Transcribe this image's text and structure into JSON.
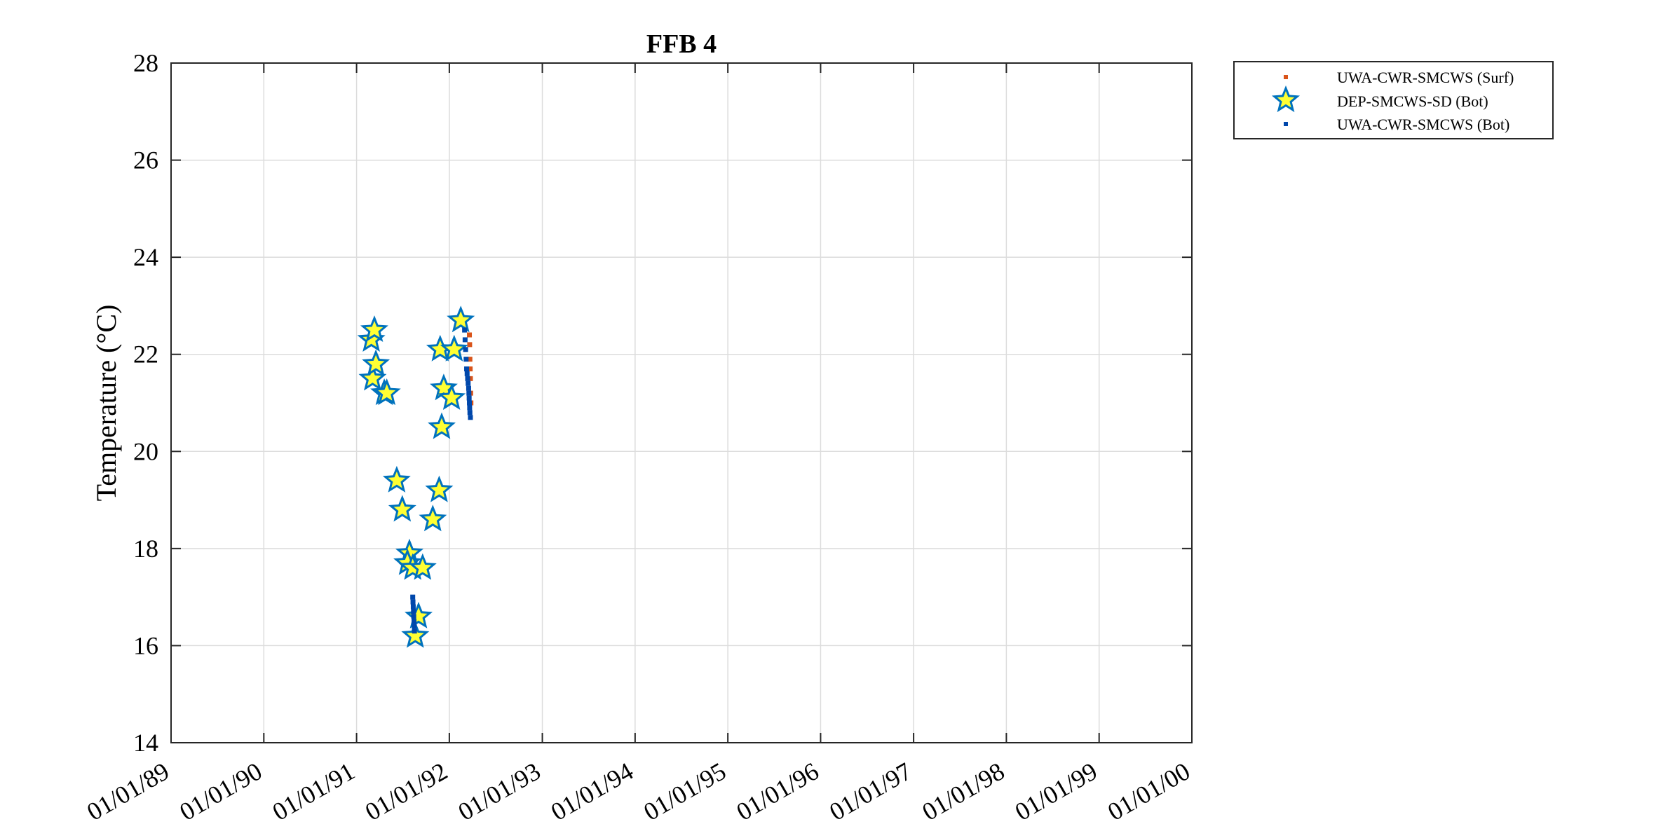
{
  "chart_data": {
    "type": "scatter",
    "title": "FFB 4",
    "xlabel": "",
    "ylabel": "Temperature (°C)",
    "x_axis_kind": "date",
    "xlim": [
      "1989-01-01",
      "2000-01-01"
    ],
    "ylim": [
      14,
      28
    ],
    "x_ticks": [
      "1989-01-01",
      "1990-01-01",
      "1991-01-01",
      "1992-01-01",
      "1993-01-01",
      "1994-01-01",
      "1995-01-01",
      "1996-01-01",
      "1997-01-01",
      "1998-01-01",
      "1999-01-01",
      "2000-01-01"
    ],
    "x_tick_labels": [
      "01/01/89",
      "01/01/90",
      "01/01/91",
      "01/01/92",
      "01/01/93",
      "01/01/94",
      "01/01/95",
      "01/01/96",
      "01/01/97",
      "01/01/98",
      "01/01/99",
      "01/01/00"
    ],
    "y_ticks": [
      14,
      16,
      18,
      20,
      22,
      24,
      26,
      28
    ],
    "y_tick_labels": [
      "14",
      "16",
      "18",
      "20",
      "22",
      "24",
      "26",
      "28"
    ],
    "grid": true,
    "legend_position": "outside-top-right",
    "series": [
      {
        "name": "UWA-CWR-SMCWS (Surf)",
        "marker": "square",
        "color": "#d9541a",
        "points": [
          [
            "1992-03-20",
            22.4
          ],
          [
            "1992-03-21",
            22.2
          ],
          [
            "1992-03-22",
            21.9
          ],
          [
            "1992-03-23",
            21.7
          ],
          [
            "1992-03-24",
            21.5
          ],
          [
            "1992-03-25",
            21.2
          ],
          [
            "1992-03-26",
            21.0
          ]
        ]
      },
      {
        "name": "DEP-SMCWS-SD (Bot)",
        "marker": "star",
        "color": "#ffff33",
        "edge_color": "#0072bd",
        "points": [
          [
            "1991-02-28",
            22.3
          ],
          [
            "1991-03-12",
            22.5
          ],
          [
            "1991-03-05",
            21.5
          ],
          [
            "1991-03-18",
            21.8
          ],
          [
            "1991-04-20",
            21.2
          ],
          [
            "1991-04-30",
            21.2
          ],
          [
            "1991-06-08",
            19.4
          ],
          [
            "1991-06-30",
            18.8
          ],
          [
            "1991-07-28",
            17.9
          ],
          [
            "1991-07-20",
            17.7
          ],
          [
            "1991-08-10",
            17.6
          ],
          [
            "1991-09-18",
            17.6
          ],
          [
            "1991-09-02",
            16.6
          ],
          [
            "1991-08-20",
            16.2
          ],
          [
            "1991-10-28",
            18.6
          ],
          [
            "1991-11-22",
            19.2
          ],
          [
            "1991-11-26",
            22.1
          ],
          [
            "1991-12-10",
            21.3
          ],
          [
            "1991-12-02",
            20.5
          ],
          [
            "1992-01-10",
            21.1
          ],
          [
            "1992-01-20",
            22.1
          ],
          [
            "1992-02-15",
            22.7
          ]
        ]
      },
      {
        "name": "UWA-CWR-SMCWS (Bot)",
        "marker": "square",
        "color": "#0047ab",
        "points": [
          [
            "1991-08-10",
            17.0
          ],
          [
            "1991-08-11",
            16.9
          ],
          [
            "1991-08-12",
            16.8
          ],
          [
            "1991-08-13",
            16.7
          ],
          [
            "1991-08-14",
            16.6
          ],
          [
            "1991-08-15",
            16.5
          ],
          [
            "1991-08-16",
            16.4
          ],
          [
            "1991-08-17",
            16.3
          ],
          [
            "1992-03-01",
            22.5
          ],
          [
            "1992-03-03",
            22.3
          ],
          [
            "1992-03-05",
            22.1
          ],
          [
            "1992-03-07",
            21.9
          ],
          [
            "1992-03-09",
            21.7
          ],
          [
            "1992-03-11",
            21.6
          ],
          [
            "1992-03-13",
            21.5
          ],
          [
            "1992-03-15",
            21.4
          ],
          [
            "1992-03-17",
            21.3
          ],
          [
            "1992-03-18",
            21.2
          ],
          [
            "1992-03-19",
            21.1
          ],
          [
            "1992-03-20",
            21.0
          ],
          [
            "1992-03-21",
            20.9
          ],
          [
            "1992-03-22",
            20.8
          ],
          [
            "1992-03-24",
            20.7
          ]
        ]
      }
    ]
  }
}
